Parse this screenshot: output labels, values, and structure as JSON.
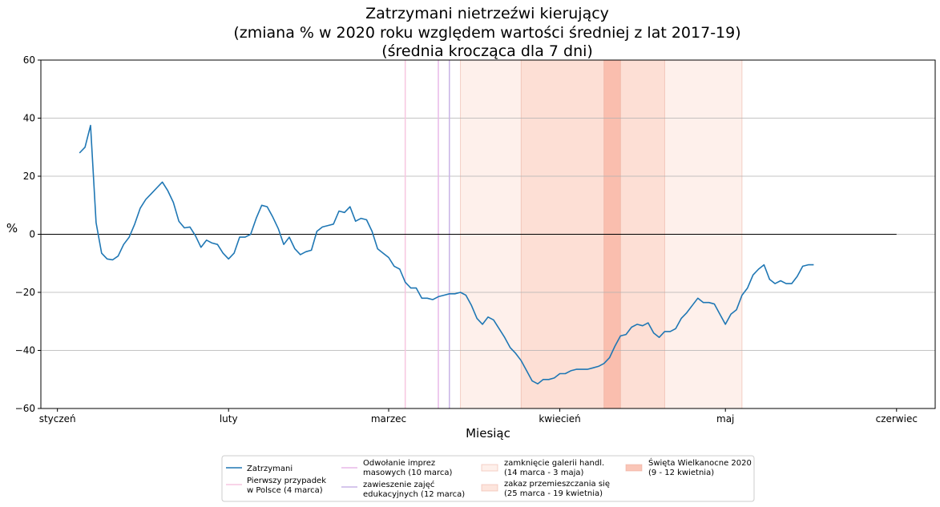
{
  "chart_data": {
    "type": "line",
    "title": [
      "Zatrzymani nietrzeźwi kierujący",
      "(zmiana % w 2020 roku względem wartości średniej z lat 2017-19)",
      "(średnia krocząca dla 7 dni)"
    ],
    "xlabel": "Miesiąc",
    "ylabel": "%",
    "xlim": [
      -3,
      159
    ],
    "ylim": [
      -60,
      60
    ],
    "yticks": [
      -60,
      -40,
      -20,
      0,
      20,
      40,
      60
    ],
    "xticks": [
      {
        "day": 0,
        "label": "styczeń"
      },
      {
        "day": 31,
        "label": "luty"
      },
      {
        "day": 60,
        "label": "marzec"
      },
      {
        "day": 91,
        "label": "kwiecień"
      },
      {
        "day": 121,
        "label": "maj"
      },
      {
        "day": 152,
        "label": "czerwiec"
      }
    ],
    "grid": "horizontal",
    "zero_line": {
      "from_day": -3,
      "to_day": 152
    },
    "vlines": [
      {
        "day": 63,
        "color": "#f7c6e0",
        "legend": [
          "Pierwszy przypadek",
          "w Polsce (4 marca)"
        ]
      },
      {
        "day": 69,
        "color": "#e8b8e8",
        "legend": [
          "Odwołanie imprez",
          "masowych (10 marca)"
        ]
      },
      {
        "day": 71,
        "color": "#c9b3e6",
        "legend": [
          "zawieszenie zajęć",
          "edukacyjnych (12 marca)"
        ]
      }
    ],
    "spans": [
      {
        "from": 73,
        "to": 124,
        "color": "#fde3da",
        "opacity": 0.55,
        "legend": [
          "zamknięcie galerii handl.",
          "(14 marca - 3 maja)"
        ]
      },
      {
        "from": 84,
        "to": 110,
        "color": "#fbd3c7",
        "opacity": 0.6,
        "legend": [
          "zakaz przemieszczania się",
          "(25 marca - 19 kwietnia)"
        ]
      },
      {
        "from": 99,
        "to": 102,
        "color": "#f8b3a0",
        "opacity": 0.75,
        "legend": [
          "Święta Wielkanocne 2020",
          "(9 - 12 kwietnia)"
        ]
      }
    ],
    "series": [
      {
        "name": "Zatrzymani",
        "color": "#1f77b4",
        "start_day": 4,
        "values": [
          28,
          30,
          37.5,
          4,
          -6.5,
          -8.5,
          -8.8,
          -7.5,
          -3.5,
          -1,
          3.5,
          9,
          12,
          14,
          16,
          18,
          15,
          11,
          4.5,
          2.2,
          2.5,
          -0.5,
          -4.5,
          -2,
          -3,
          -3.5,
          -6.5,
          -8.5,
          -6.5,
          -1,
          -1,
          0,
          5.5,
          10,
          9.5,
          6,
          2,
          -3.5,
          -1,
          -5,
          -7,
          -6,
          -5.5,
          1,
          2.5,
          3,
          3.5,
          8,
          7.5,
          9.5,
          4.5,
          5.5,
          5,
          1,
          -5,
          -6.5,
          -8,
          -11,
          -12,
          -16.5,
          -18.5,
          -18.5,
          -22,
          -22,
          -22.5,
          -21.5,
          -21,
          -20.5,
          -20.5,
          -20,
          -21,
          -24.5,
          -29,
          -31,
          -28.5,
          -29.5,
          -32.5,
          -35.5,
          -39,
          -41,
          -43.5,
          -47,
          -50.5,
          -51.5,
          -50,
          -50,
          -49.5,
          -48,
          -48,
          -47,
          -46.5,
          -46.5,
          -46.5,
          -46,
          -45.5,
          -44.5,
          -42.5,
          -38.5,
          -35,
          -34.5,
          -32,
          -31,
          -31.5,
          -30.5,
          -34,
          -35.5,
          -33.5,
          -33.5,
          -32.5,
          -29,
          -27,
          -24.5,
          -22,
          -23.5,
          -23.5,
          -24,
          -27.5,
          -31,
          -27.5,
          -26,
          -21,
          -18.5,
          -14,
          -12,
          -10.5,
          -15.5,
          -17,
          -16,
          -17,
          -17,
          -14.5,
          -11,
          -10.5,
          -10.5
        ]
      }
    ],
    "legend_placement": "bottom-center"
  }
}
